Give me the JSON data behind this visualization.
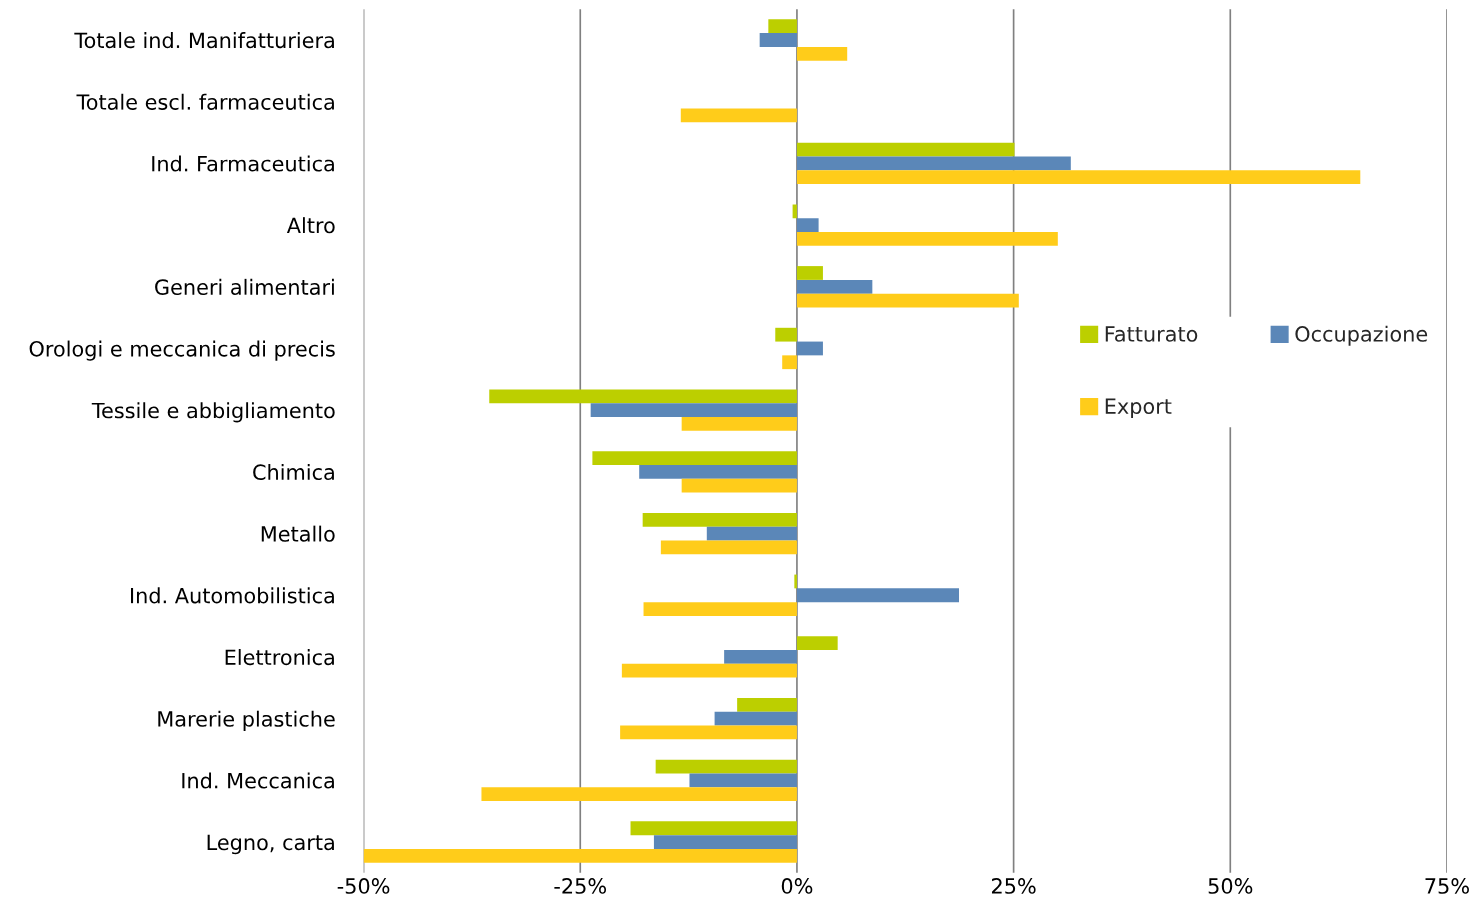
{
  "chart_data": {
    "type": "bar",
    "orientation": "horizontal",
    "categories": [
      "Totale ind. Manifatturiera",
      "Totale escl. farmaceutica",
      "Ind. Farmaceutica",
      "Altro",
      "Generi alimentari",
      "Orologi e meccanica di precis",
      "Tessile e abbigliamento",
      "Chimica",
      "Metallo",
      "Ind. Automobilistica",
      "Elettronica",
      "Marerie plastiche",
      "Ind. Meccanica",
      "Legno, carta"
    ],
    "series": [
      {
        "name": "Fatturato",
        "color": "#bccf00",
        "values": [
          -3.3,
          null,
          25.1,
          -0.5,
          3.0,
          -2.5,
          -35.5,
          -23.6,
          -17.8,
          -0.3,
          4.7,
          -6.9,
          -16.3,
          -19.2
        ]
      },
      {
        "name": "Occupazione",
        "color": "#5b87b8",
        "values": [
          -4.3,
          null,
          31.6,
          2.5,
          8.7,
          3.0,
          -23.8,
          -18.2,
          -10.4,
          18.7,
          -8.4,
          -9.5,
          -12.4,
          -16.5
        ]
      },
      {
        "name": "Export",
        "color": "#ffcc1a",
        "values": [
          5.8,
          -13.4,
          65.0,
          30.1,
          25.6,
          -1.7,
          -13.3,
          -13.3,
          -15.7,
          -17.7,
          -20.2,
          -20.4,
          -36.4,
          -50.0
        ]
      }
    ],
    "xlim": [
      -50,
      75
    ],
    "xticks": [
      {
        "value": -50,
        "label": "-50%"
      },
      {
        "value": -25,
        "label": "-25%"
      },
      {
        "value": 0,
        "label": "0%"
      },
      {
        "value": 25,
        "label": "25%"
      },
      {
        "value": 50,
        "label": "50%"
      },
      {
        "value": 75,
        "label": "75%"
      }
    ],
    "grid": "x",
    "legend": "right"
  }
}
